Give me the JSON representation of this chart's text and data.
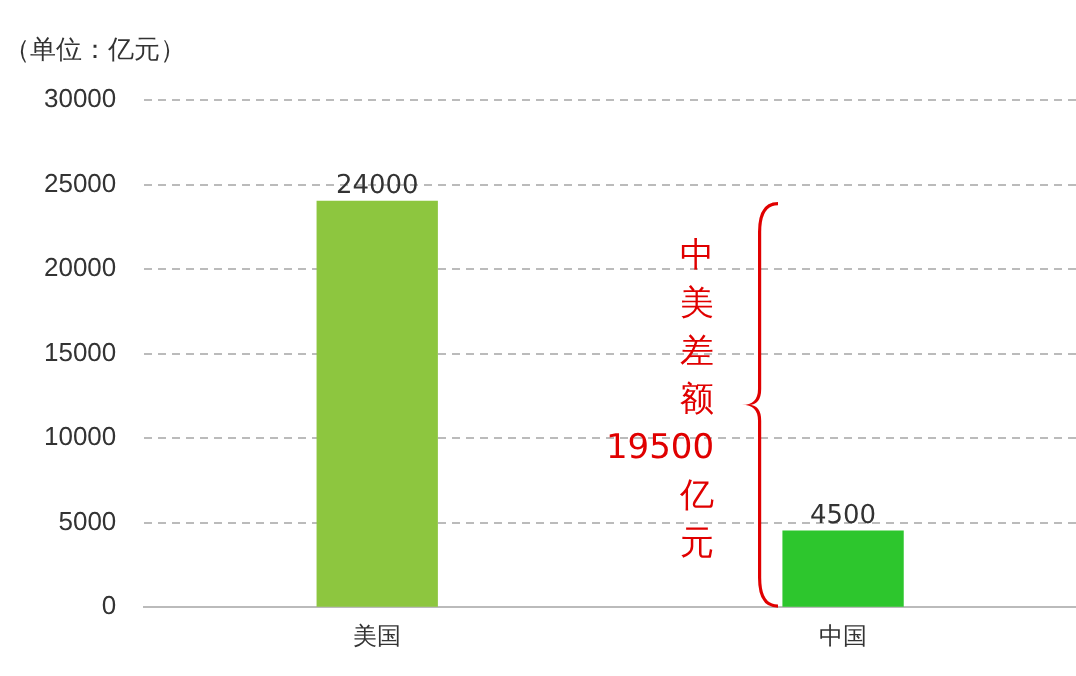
{
  "chart_data": {
    "type": "bar",
    "ylabel": "（单位：亿元）",
    "categories": [
      "美国",
      "中国"
    ],
    "values": [
      24000,
      4500
    ],
    "colors": [
      "#8dc63f",
      "#2dc62d"
    ],
    "ylim": [
      0,
      30000
    ],
    "yticks": [
      0,
      5000,
      10000,
      15000,
      20000,
      25000,
      30000
    ],
    "grid": "y",
    "data_labels": true,
    "legend": false,
    "annotations": [
      "中美差额19500亿元"
    ]
  }
}
